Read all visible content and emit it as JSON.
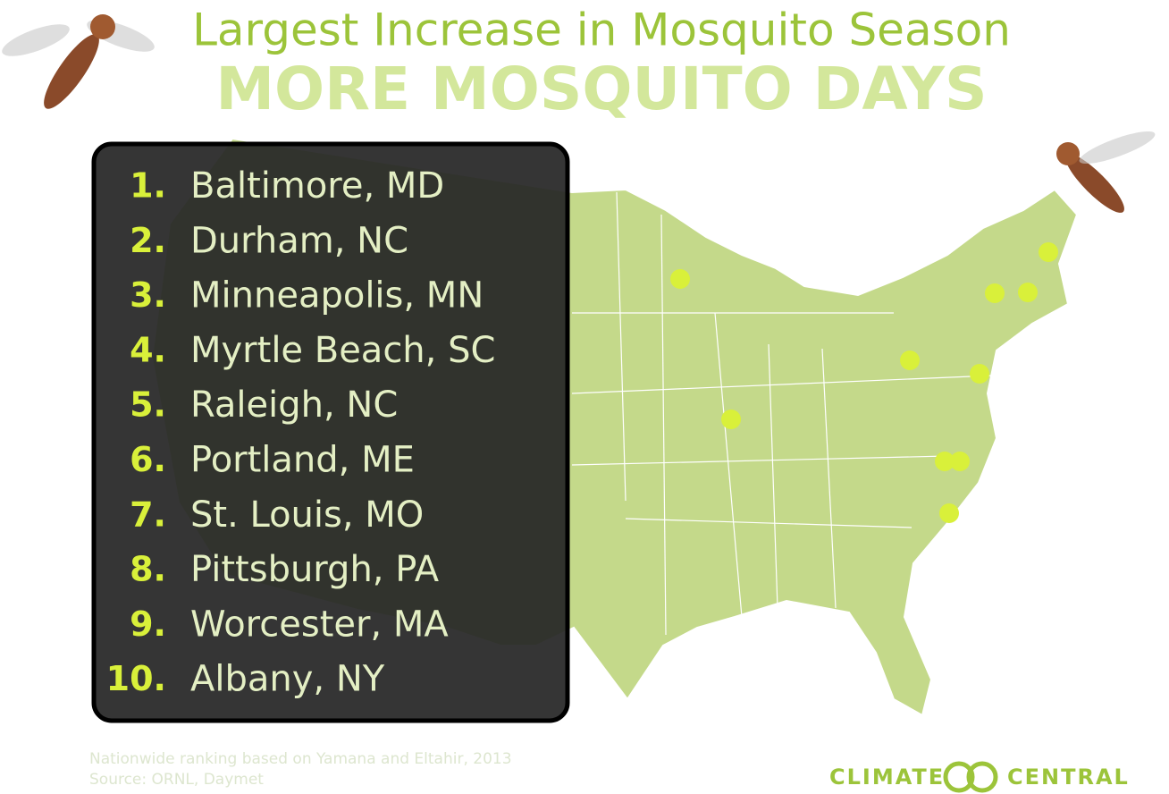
{
  "header": {
    "title": "Largest Increase in Mosquito Season",
    "subtitle": "MORE MOSQUITO DAYS"
  },
  "ranking": [
    {
      "rank": "1.",
      "city": "Baltimore, MD"
    },
    {
      "rank": "2.",
      "city": "Durham, NC"
    },
    {
      "rank": "3.",
      "city": "Minneapolis, MN"
    },
    {
      "rank": "4.",
      "city": "Myrtle Beach, SC"
    },
    {
      "rank": "5.",
      "city": "Raleigh, NC"
    },
    {
      "rank": "6.",
      "city": "Portland, ME"
    },
    {
      "rank": "7.",
      "city": "St. Louis, MO"
    },
    {
      "rank": "8.",
      "city": "Pittsburgh, PA"
    },
    {
      "rank": "9.",
      "city": "Worcester, MA"
    },
    {
      "rank": "10.",
      "city": "Albany, NY"
    }
  ],
  "footer": {
    "note": "Nationwide ranking based on Yamana and Eltahir, 2013",
    "source": "Source: ORNL, Daymet"
  },
  "logo": {
    "left": "CLIMATE",
    "right": "CENTRAL"
  }
}
